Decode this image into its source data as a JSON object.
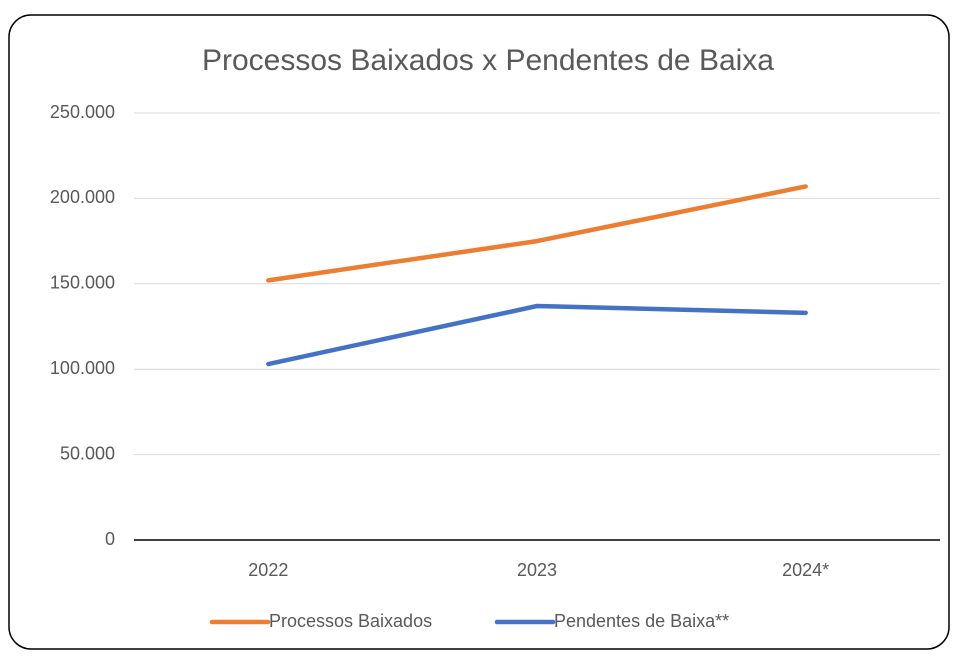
{
  "chart_data": {
    "type": "line",
    "title": "Processos Baixados x Pendentes de Baixa",
    "categories": [
      "2022",
      "2023",
      "2024*"
    ],
    "series": [
      {
        "name": "Processos Baixados",
        "color": "#ed7d31",
        "values": [
          152000,
          175000,
          207000
        ]
      },
      {
        "name": "Pendentes de Baixa**",
        "color": "#4472c4",
        "values": [
          103000,
          137000,
          133000
        ]
      }
    ],
    "ylim": [
      0,
      250000
    ],
    "yticks": [
      0,
      {
        "value": 50000,
        "label": "50.000"
      },
      {
        "value": 100000,
        "label": "100.000"
      },
      {
        "value": 150000,
        "label": "150.000"
      },
      {
        "value": 200000,
        "label": "200.000"
      },
      {
        "value": 250000,
        "label": "250.000"
      }
    ],
    "grid": true,
    "legend": "bottom"
  }
}
